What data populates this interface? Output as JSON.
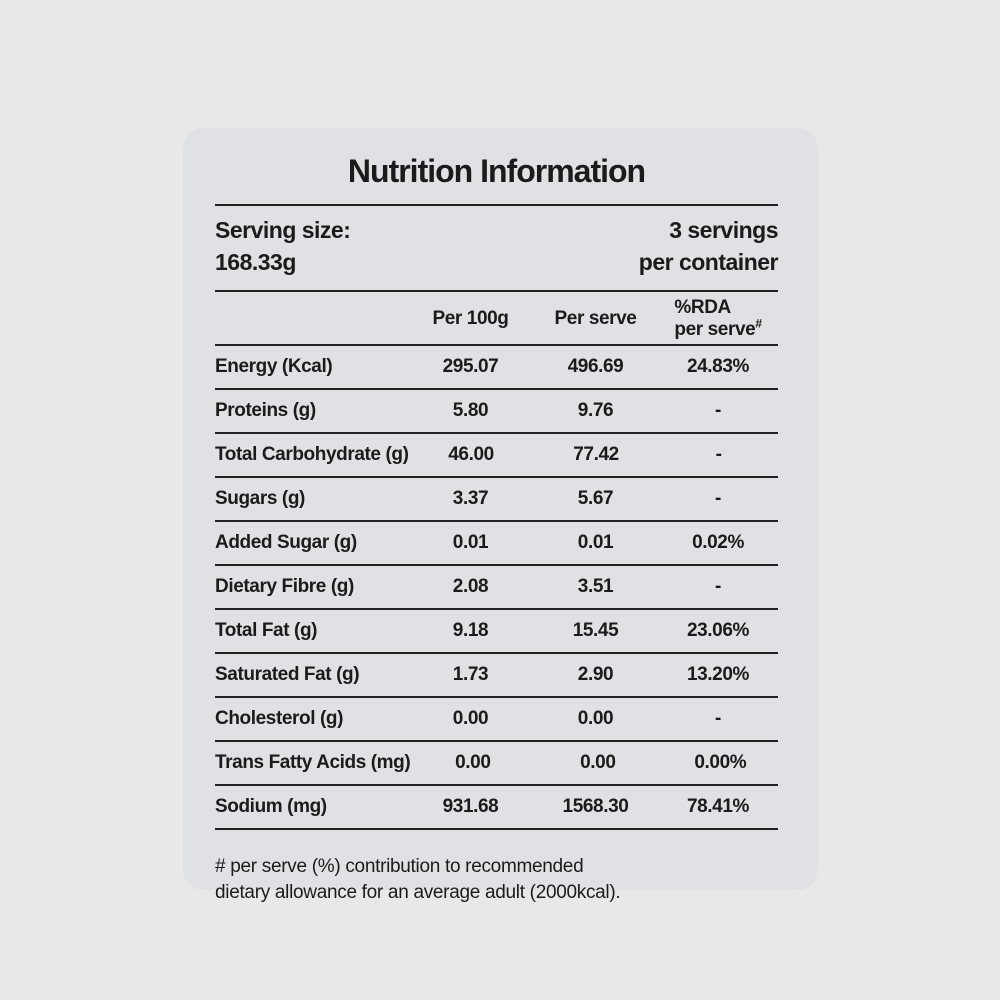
{
  "colors": {
    "page_background": "#e8e8e8",
    "panel_background": "#dfe1e4",
    "text": "#1b1b1b",
    "rule": "#222222"
  },
  "title": "Nutrition Information",
  "serving": {
    "label": "Serving size:",
    "value": "168.33g",
    "servings_line1": "3 servings",
    "servings_line2": "per container"
  },
  "table": {
    "header": {
      "per_100g": "Per 100g",
      "per_serve": "Per serve",
      "rda_line1": "%RDA",
      "rda_line2": "per serve",
      "rda_sup": "#"
    },
    "rows": [
      {
        "label": "Energy (Kcal)",
        "per_100g": "295.07",
        "per_serve": "496.69",
        "rda": "24.83%"
      },
      {
        "label": "Proteins (g)",
        "per_100g": "5.80",
        "per_serve": "9.76",
        "rda": "-"
      },
      {
        "label": "Total Carbohydrate (g)",
        "per_100g": "46.00",
        "per_serve": "77.42",
        "rda": "-"
      },
      {
        "label": "Sugars (g)",
        "per_100g": "3.37",
        "per_serve": "5.67",
        "rda": "-"
      },
      {
        "label": "Added Sugar (g)",
        "per_100g": "0.01",
        "per_serve": "0.01",
        "rda": "0.02%"
      },
      {
        "label": "Dietary Fibre (g)",
        "per_100g": "2.08",
        "per_serve": "3.51",
        "rda": "-"
      },
      {
        "label": "Total Fat (g)",
        "per_100g": "9.18",
        "per_serve": "15.45",
        "rda": "23.06%"
      },
      {
        "label": "Saturated Fat (g)",
        "per_100g": "1.73",
        "per_serve": "2.90",
        "rda": "13.20%"
      },
      {
        "label": "Cholesterol (g)",
        "per_100g": "0.00",
        "per_serve": "0.00",
        "rda": "-"
      },
      {
        "label": "Trans Fatty Acids (mg)",
        "per_100g": "0.00",
        "per_serve": "0.00",
        "rda": "0.00%"
      },
      {
        "label": "Sodium (mg)",
        "per_100g": "931.68",
        "per_serve": "1568.30",
        "rda": "78.41%"
      }
    ]
  },
  "footnote": "# per serve (%) contribution to recommended dietary allowance for an average adult (2000kcal)."
}
